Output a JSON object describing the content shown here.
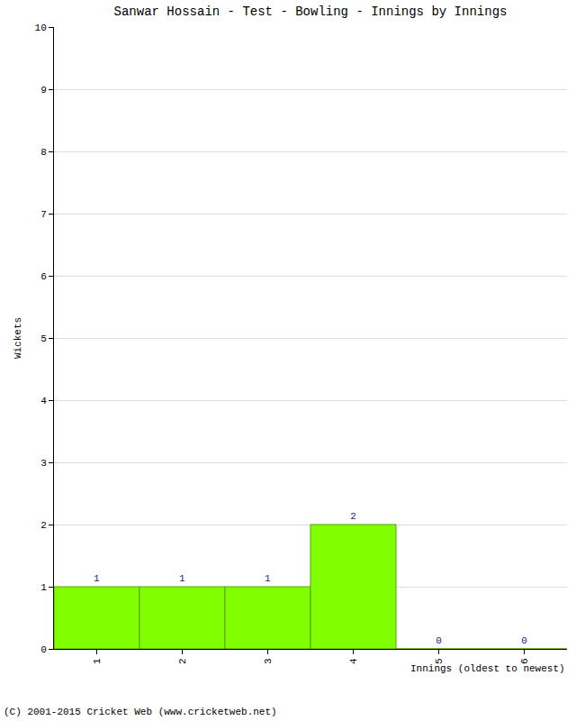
{
  "chart_data": {
    "type": "bar",
    "title": "Sanwar Hossain - Test - Bowling - Innings by Innings",
    "x_label": "Innings (oldest to newest)",
    "y_label": "Wickets",
    "categories": [
      "1",
      "2",
      "3",
      "4",
      "5",
      "6"
    ],
    "values": [
      1,
      1,
      1,
      2,
      0,
      0
    ],
    "color": "#80ff00",
    "data_labels": true,
    "ylim": [
      0,
      10
    ],
    "yticks": [
      0,
      1,
      2,
      3,
      4,
      5,
      6,
      7,
      8,
      9,
      10
    ],
    "grid": true,
    "annotations": [
      "(C) 2001-2015 Cricket Web (www.cricketweb.net)"
    ]
  }
}
